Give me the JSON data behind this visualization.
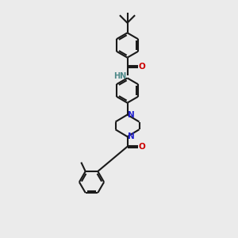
{
  "bg_color": "#ebebeb",
  "line_color": "#1a1a1a",
  "N_color": "#2222cc",
  "O_color": "#cc0000",
  "NH_color": "#4d8888",
  "bond_lw": 1.5,
  "figsize": [
    3.0,
    3.0
  ],
  "dpi": 100,
  "xlim": [
    0,
    10
  ],
  "ylim": [
    0,
    10
  ]
}
